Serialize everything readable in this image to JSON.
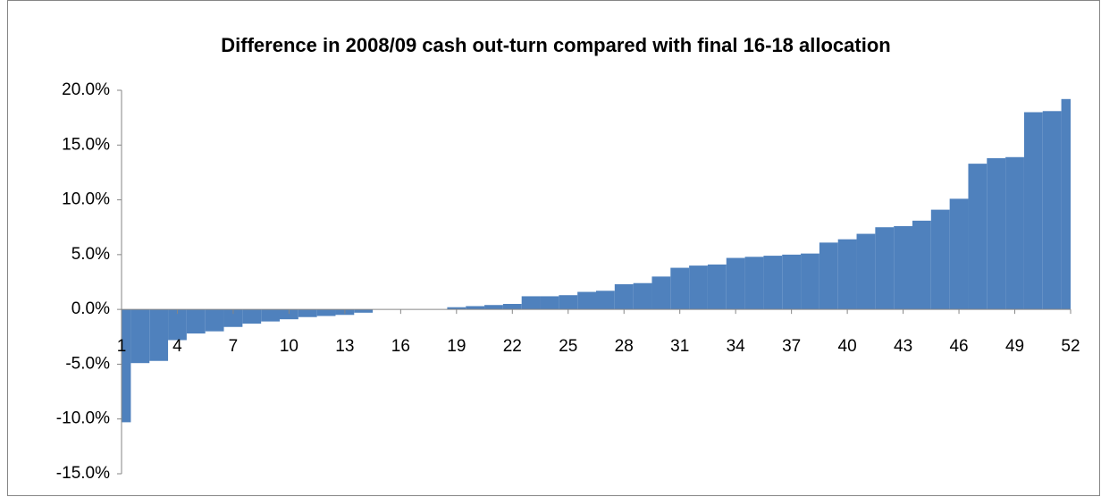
{
  "chart_data": {
    "type": "bar",
    "title": "Difference in 2008/09 cash out-turn compared with final 16-18 allocation",
    "categories": [
      "1",
      null,
      null,
      "4",
      null,
      null,
      "7",
      null,
      null,
      "10",
      null,
      null,
      "13",
      null,
      null,
      "16",
      null,
      null,
      "19",
      null,
      null,
      "22",
      null,
      null,
      "25",
      null,
      null,
      "28",
      null,
      null,
      "31",
      null,
      null,
      "34",
      null,
      null,
      "37",
      null,
      null,
      "40",
      null,
      null,
      "43",
      null,
      null,
      "46",
      null,
      null,
      "49",
      null,
      null,
      "52"
    ],
    "values": [
      -10.3,
      -4.9,
      -4.7,
      -2.8,
      -2.2,
      -2.0,
      -1.6,
      -1.3,
      -1.1,
      -0.9,
      -0.7,
      -0.6,
      -0.5,
      -0.3,
      0,
      0,
      0,
      0,
      0.2,
      0.3,
      0.4,
      0.5,
      1.2,
      1.2,
      1.3,
      1.6,
      1.7,
      2.3,
      2.4,
      3.0,
      3.8,
      4.0,
      4.1,
      4.7,
      4.8,
      4.9,
      5.0,
      5.1,
      6.1,
      6.4,
      6.9,
      7.5,
      7.6,
      8.1,
      9.1,
      10.1,
      13.3,
      13.8,
      13.9,
      18.0,
      18.1,
      19.2
    ],
    "color": "#4f81bd",
    "ylim": [
      -15,
      20
    ],
    "yticks": [
      {
        "value": -15,
        "label": "-15.0%"
      },
      {
        "value": -10,
        "label": "-10.0%"
      },
      {
        "value": -5,
        "label": "-5.0%"
      },
      {
        "value": 0,
        "label": "0.0%"
      },
      {
        "value": 5,
        "label": "5.0%"
      },
      {
        "value": 10,
        "label": "10.0%"
      },
      {
        "value": 15,
        "label": "15.0%"
      },
      {
        "value": 20,
        "label": "20.0%"
      }
    ],
    "grid": false
  }
}
